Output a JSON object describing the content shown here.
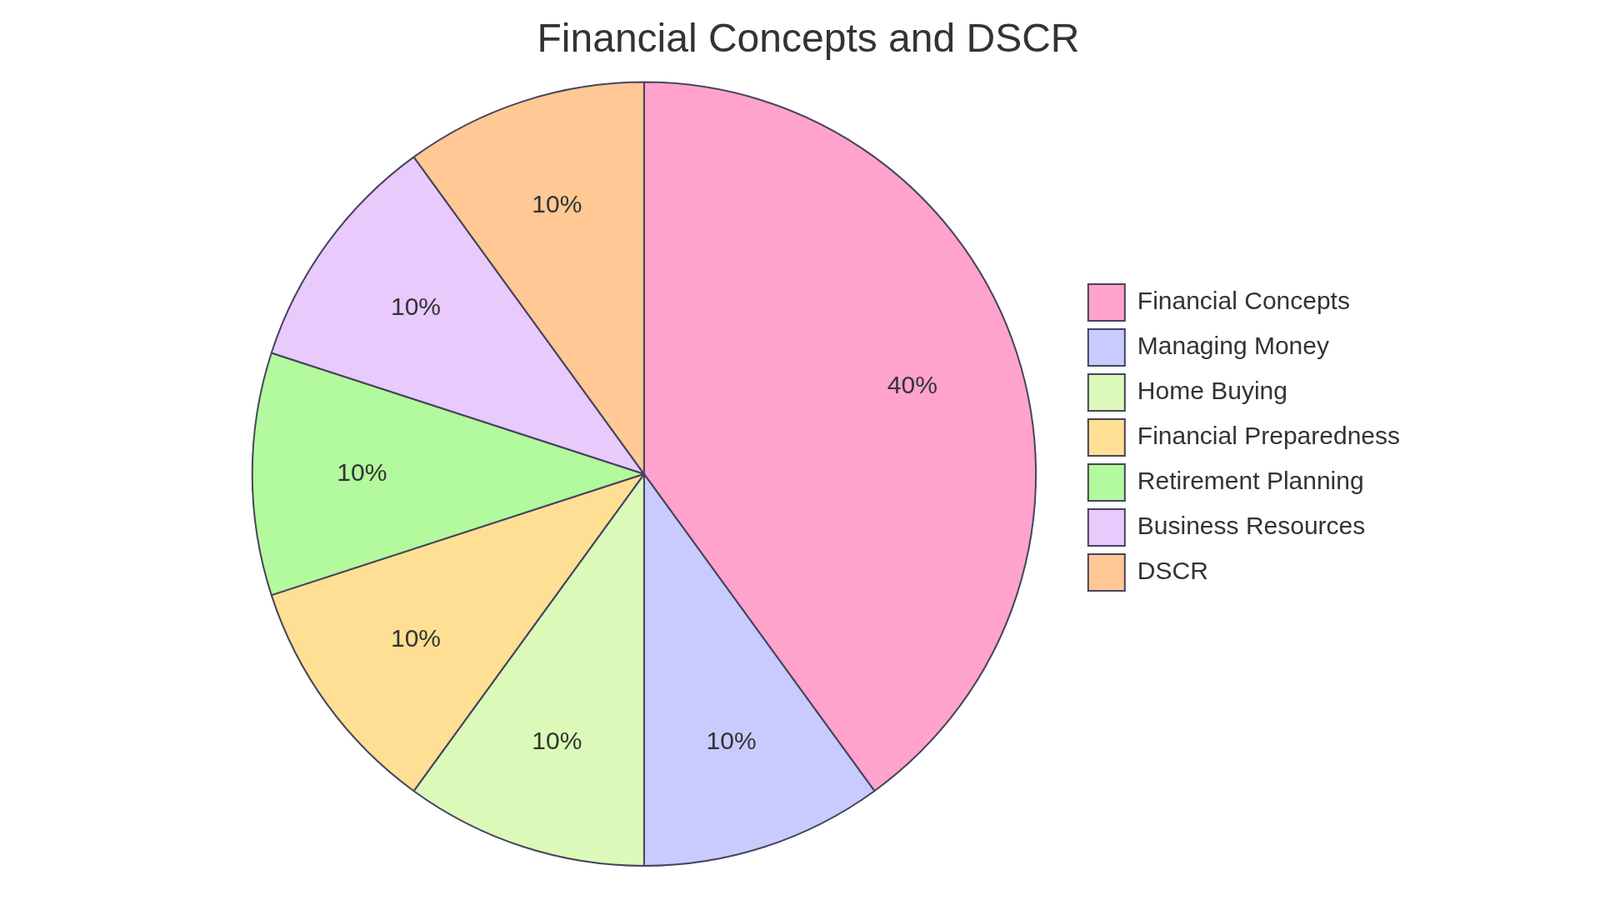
{
  "chart_data": {
    "type": "pie",
    "title": "Financial Concepts and DSCR",
    "categories": [
      "Financial Concepts",
      "Managing Money",
      "Home Buying",
      "Financial Preparedness",
      "Retirement Planning",
      "Business Resources",
      "DSCR"
    ],
    "values": [
      40,
      10,
      10,
      10,
      10,
      10,
      10
    ],
    "value_labels": [
      "40%",
      "10%",
      "10%",
      "10%",
      "10%",
      "10%",
      "10%"
    ],
    "colors": [
      "#ffa3cc",
      "#c9cbff",
      "#dbf9b8",
      "#ffdf94",
      "#b3f99d",
      "#e8cbfc",
      "#ffc894"
    ],
    "data_labels": true,
    "legend": "right"
  }
}
